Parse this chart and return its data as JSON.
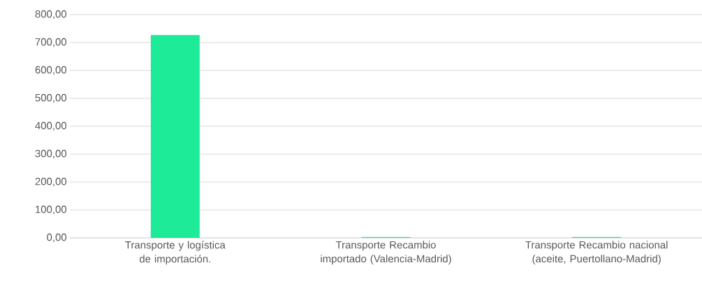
{
  "chart_data": {
    "type": "bar",
    "categories": [
      "Transporte y logística de importación.",
      "Transporte Recambio importado (Valencia-Madrid)",
      "Transporte Recambio nacional (aceite, Puertollano-Madrid)"
    ],
    "values": [
      727,
      3,
      3
    ],
    "color": "#1deb98",
    "ylim": [
      0,
      800
    ],
    "yticks": [
      {
        "value": 0,
        "label": "0,00"
      },
      {
        "value": 100,
        "label": "100,00"
      },
      {
        "value": 200,
        "label": "200,00"
      },
      {
        "value": 300,
        "label": "300,00"
      },
      {
        "value": 400,
        "label": "400,00"
      },
      {
        "value": 500,
        "label": "500,00"
      },
      {
        "value": 600,
        "label": "600,00"
      },
      {
        "value": 700,
        "label": "700,00"
      },
      {
        "value": 800,
        "label": "800,00"
      }
    ],
    "grid": "y"
  }
}
